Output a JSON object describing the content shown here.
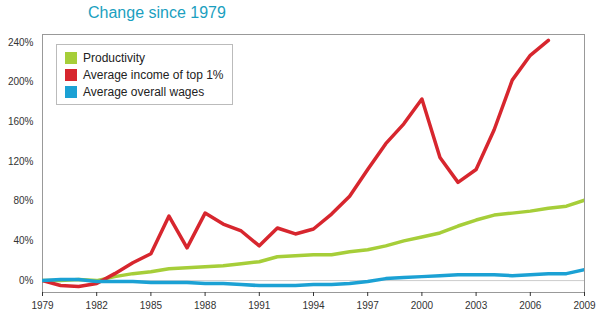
{
  "chart_data": {
    "type": "line",
    "title": "Change since 1979",
    "x": [
      1979,
      1980,
      1981,
      1982,
      1983,
      1984,
      1985,
      1986,
      1987,
      1988,
      1989,
      1990,
      1991,
      1992,
      1993,
      1994,
      1995,
      1996,
      1997,
      1998,
      1999,
      2000,
      2001,
      2002,
      2003,
      2004,
      2005,
      2006,
      2007,
      2008,
      2009
    ],
    "series": [
      {
        "name": "Productivity",
        "color": "#a6ce39",
        "values": [
          0,
          0,
          1,
          0,
          4,
          7,
          9,
          12,
          13,
          14,
          15,
          17,
          19,
          24,
          25,
          26,
          26,
          29,
          31,
          35,
          40,
          44,
          48,
          55,
          61,
          66,
          68,
          70,
          73,
          75,
          81
        ]
      },
      {
        "name": "Average income of top 1%",
        "color": "#d7262e",
        "values": [
          0,
          -5,
          -6,
          -3,
          7,
          18,
          27,
          65,
          33,
          68,
          57,
          50,
          35,
          53,
          47,
          52,
          67,
          85,
          112,
          138,
          158,
          183,
          124,
          99,
          112,
          152,
          202,
          227,
          242,
          null,
          null
        ]
      },
      {
        "name": "Average overall wages",
        "color": "#1ba1d4",
        "values": [
          0,
          1,
          1,
          -1,
          -1,
          -1,
          -2,
          -2,
          -2,
          -3,
          -3,
          -4,
          -5,
          -5,
          -5,
          -4,
          -4,
          -3,
          -1,
          2,
          3,
          4,
          5,
          6,
          6,
          6,
          5,
          6,
          7,
          7,
          11
        ]
      }
    ],
    "xlim": [
      1979,
      2009
    ],
    "xticks": [
      1979,
      1982,
      1985,
      1988,
      1991,
      1994,
      1997,
      2000,
      2003,
      2006,
      2009
    ],
    "ylim": [
      -12,
      248
    ],
    "yticks": [
      {
        "value": 0,
        "label": "0%"
      },
      {
        "value": 40,
        "label": "40%"
      },
      {
        "value": 80,
        "label": "80%"
      },
      {
        "value": 120,
        "label": "120%"
      },
      {
        "value": 160,
        "label": "160%"
      },
      {
        "value": 200,
        "label": "200%"
      },
      {
        "value": 240,
        "label": "240%"
      }
    ],
    "grid": false,
    "legend": "top-left"
  }
}
